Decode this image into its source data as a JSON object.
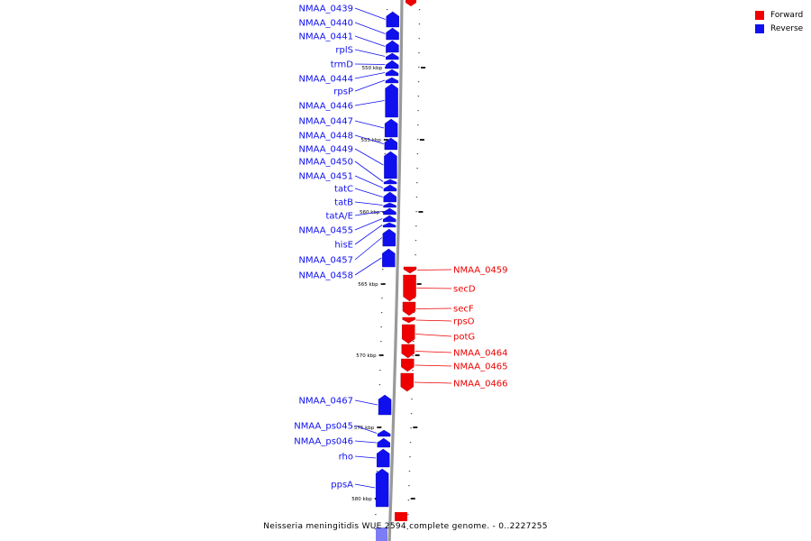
{
  "legend": {
    "forward": {
      "label": "Forward",
      "color": "#ee0000"
    },
    "reverse": {
      "label": "Reverse",
      "color": "#1010ee"
    }
  },
  "caption": "Neisseria meningitidis WUE 2594 complete genome. - 0..2227255",
  "scale_labels": [
    "550 kbp",
    "555 kbp",
    "560 kbp",
    "565 kbp",
    "570 kbp",
    "575 kbp",
    "580 kbp"
  ],
  "genes": [
    {
      "name": "NMAA_0439",
      "strand": "reverse"
    },
    {
      "name": "NMAA_0440",
      "strand": "reverse"
    },
    {
      "name": "NMAA_0441",
      "strand": "reverse"
    },
    {
      "name": "rplS",
      "strand": "reverse"
    },
    {
      "name": "trmD",
      "strand": "reverse"
    },
    {
      "name": "NMAA_0444",
      "strand": "reverse"
    },
    {
      "name": "rpsP",
      "strand": "reverse"
    },
    {
      "name": "NMAA_0446",
      "strand": "reverse"
    },
    {
      "name": "NMAA_0447",
      "strand": "reverse"
    },
    {
      "name": "NMAA_0448",
      "strand": "reverse"
    },
    {
      "name": "NMAA_0449",
      "strand": "reverse"
    },
    {
      "name": "NMAA_0450",
      "strand": "reverse"
    },
    {
      "name": "NMAA_0451",
      "strand": "reverse"
    },
    {
      "name": "tatC",
      "strand": "reverse"
    },
    {
      "name": "tatB",
      "strand": "reverse"
    },
    {
      "name": "tatA/E",
      "strand": "reverse"
    },
    {
      "name": "NMAA_0455",
      "strand": "reverse"
    },
    {
      "name": "hisE",
      "strand": "reverse"
    },
    {
      "name": "NMAA_0457",
      "strand": "reverse"
    },
    {
      "name": "NMAA_0458",
      "strand": "reverse"
    },
    {
      "name": "NMAA_0459",
      "strand": "forward"
    },
    {
      "name": "secD",
      "strand": "forward"
    },
    {
      "name": "secF",
      "strand": "forward"
    },
    {
      "name": "rpsO",
      "strand": "forward"
    },
    {
      "name": "potG",
      "strand": "forward"
    },
    {
      "name": "NMAA_0464",
      "strand": "forward"
    },
    {
      "name": "NMAA_0465",
      "strand": "forward"
    },
    {
      "name": "NMAA_0466",
      "strand": "forward"
    },
    {
      "name": "NMAA_0467",
      "strand": "reverse"
    },
    {
      "name": "NMAA_ps045",
      "strand": "reverse"
    },
    {
      "name": "NMAA_ps046",
      "strand": "reverse"
    },
    {
      "name": "rho",
      "strand": "reverse"
    },
    {
      "name": "ppsA",
      "strand": "reverse"
    }
  ]
}
